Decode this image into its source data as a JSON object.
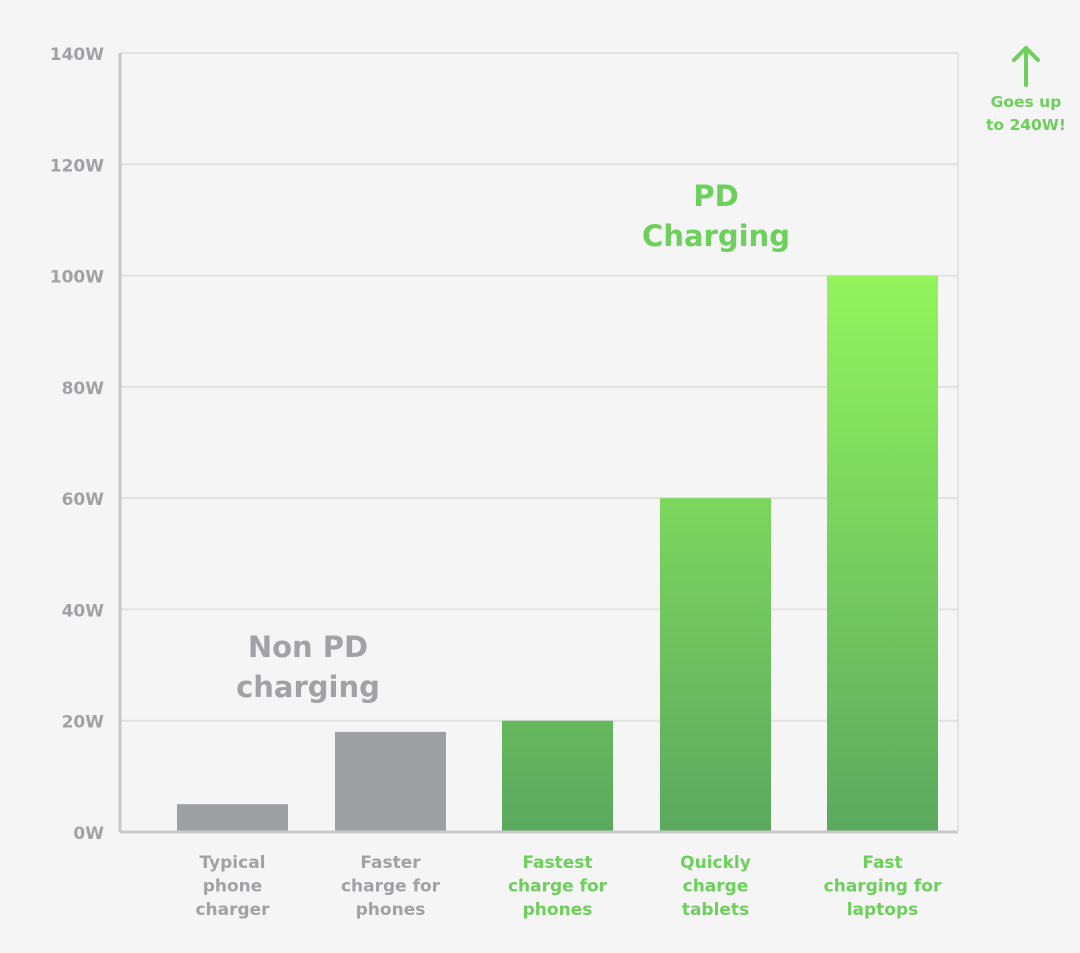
{
  "chart_data": {
    "type": "bar",
    "categories": [
      [
        "Typical",
        "phone",
        "charger"
      ],
      [
        "Faster",
        "charge for",
        "phones"
      ],
      [
        "Fastest",
        "charge for",
        "phones"
      ],
      [
        "Quickly",
        "charge",
        "tablets"
      ],
      [
        "Fast",
        "charging for",
        "laptops"
      ]
    ],
    "values": [
      5,
      18,
      20,
      60,
      100
    ],
    "groups": [
      "non-pd",
      "non-pd",
      "pd",
      "pd",
      "pd"
    ],
    "ylim": [
      0,
      140
    ],
    "yticks": [
      0,
      20,
      40,
      60,
      80,
      100,
      120,
      140
    ],
    "ytick_suffix": "W",
    "grid": true,
    "annotations": {
      "non_pd": [
        "Non PD",
        "charging"
      ],
      "pd": [
        "PD",
        "Charging"
      ],
      "note": [
        "Goes up",
        "to 240W!"
      ]
    },
    "colors": {
      "grey_bar": "#9e9fa3",
      "grey_text": "#a2a2a4",
      "green_text": "#6dcf5c",
      "green_top": "#93f45d",
      "green_bottom": "#5aa95e",
      "grid": "#e2e2e2",
      "axis": "#c8c8c6"
    }
  }
}
